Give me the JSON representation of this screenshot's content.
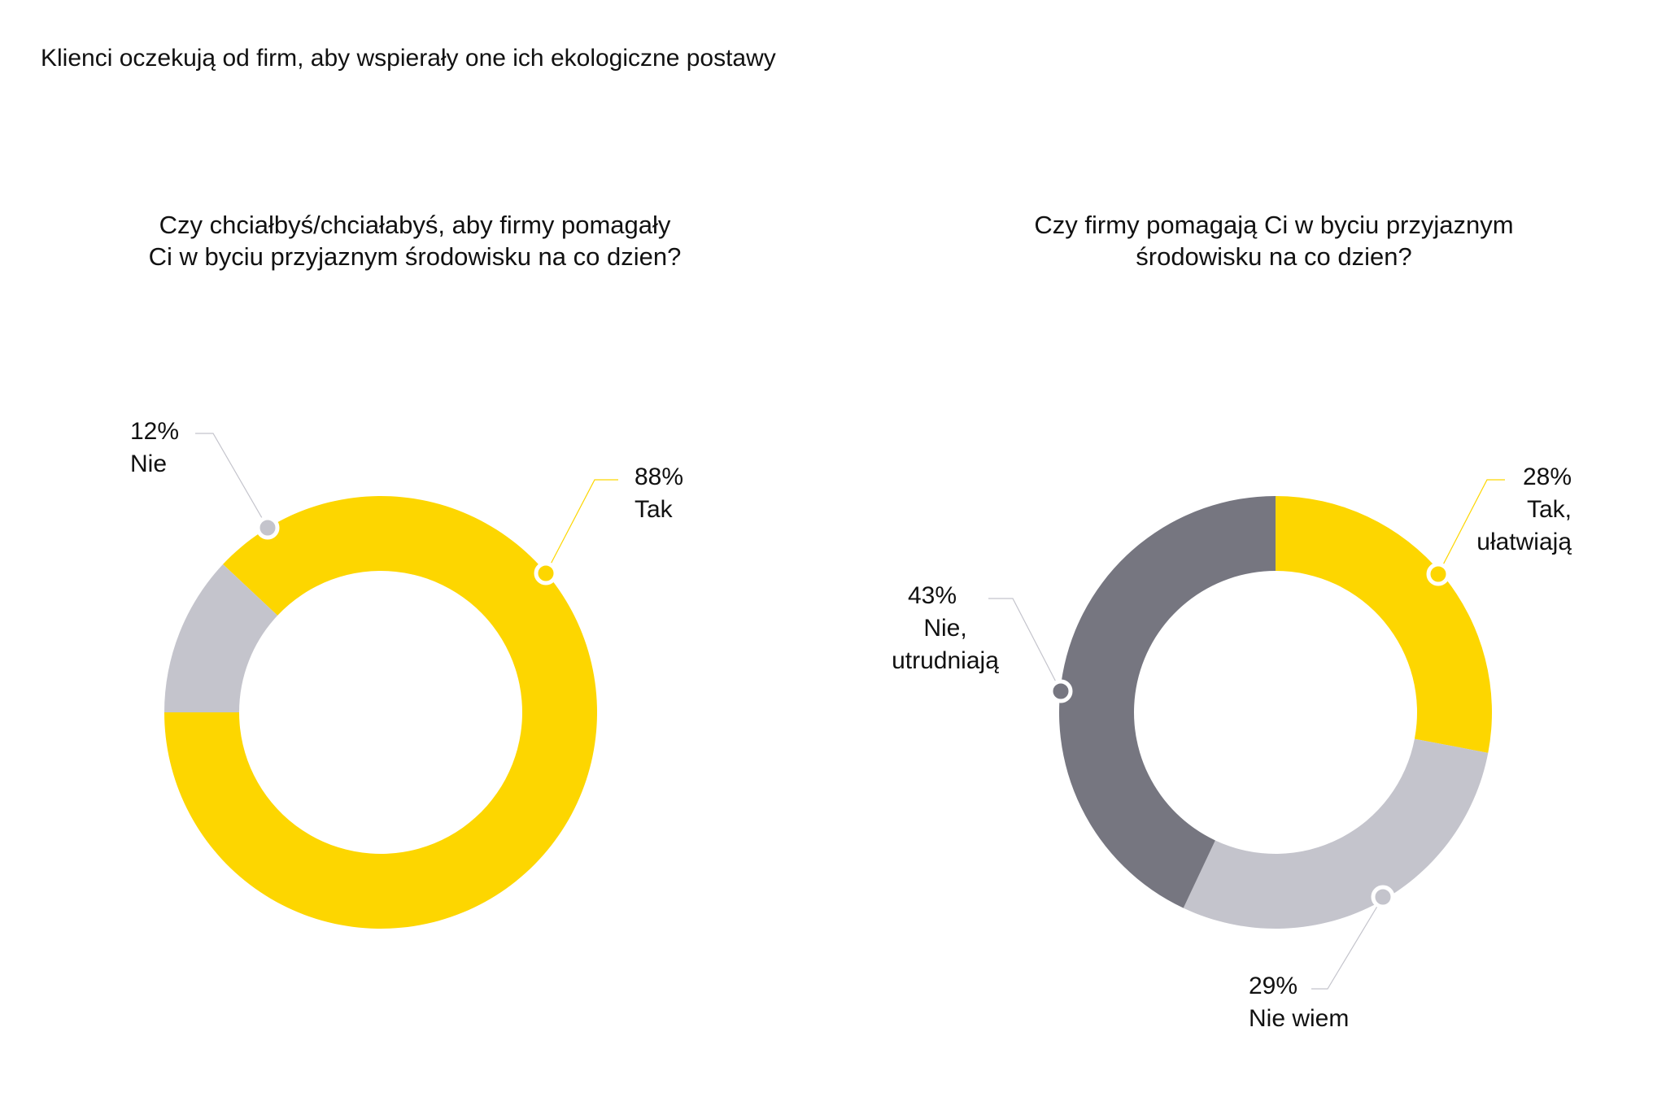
{
  "main_title": "Klienci oczekują od firm, aby wspierały one ich ekologiczne postawy",
  "colors": {
    "yellow": "#FDD600",
    "light_gray": "#C4C4CC",
    "dark_gray": "#767680",
    "text": "#111111"
  },
  "chart_data": [
    {
      "type": "pie",
      "donut": true,
      "title_lines": [
        "Czy chciałbyś/chciałabyś, aby firmy pomagały",
        "Ci w byciu przyjaznym środowisku na co dzien?"
      ],
      "series": [
        {
          "name": "Tak",
          "percent_label": "88%",
          "value": 88,
          "color": "#FDD600"
        },
        {
          "name": "Nie",
          "percent_label": "12%",
          "value": 12,
          "color": "#C4C4CC"
        }
      ]
    },
    {
      "type": "pie",
      "donut": true,
      "title_lines": [
        "Czy firmy pomagają Ci w byciu przyjaznym",
        "środowisku na co dzien?"
      ],
      "series": [
        {
          "name": "Tak, ułatwiają",
          "name_lines": [
            "Tak,",
            "ułatwiają"
          ],
          "percent_label": "28%",
          "value": 28,
          "color": "#FDD600"
        },
        {
          "name": "Nie wiem",
          "name_lines": [
            "Nie wiem"
          ],
          "percent_label": "29%",
          "value": 29,
          "color": "#C4C4CC"
        },
        {
          "name": "Nie, utrudniają",
          "name_lines": [
            "Nie,",
            "utrudniają"
          ],
          "percent_label": "43%",
          "value": 43,
          "color": "#767680"
        }
      ]
    }
  ]
}
